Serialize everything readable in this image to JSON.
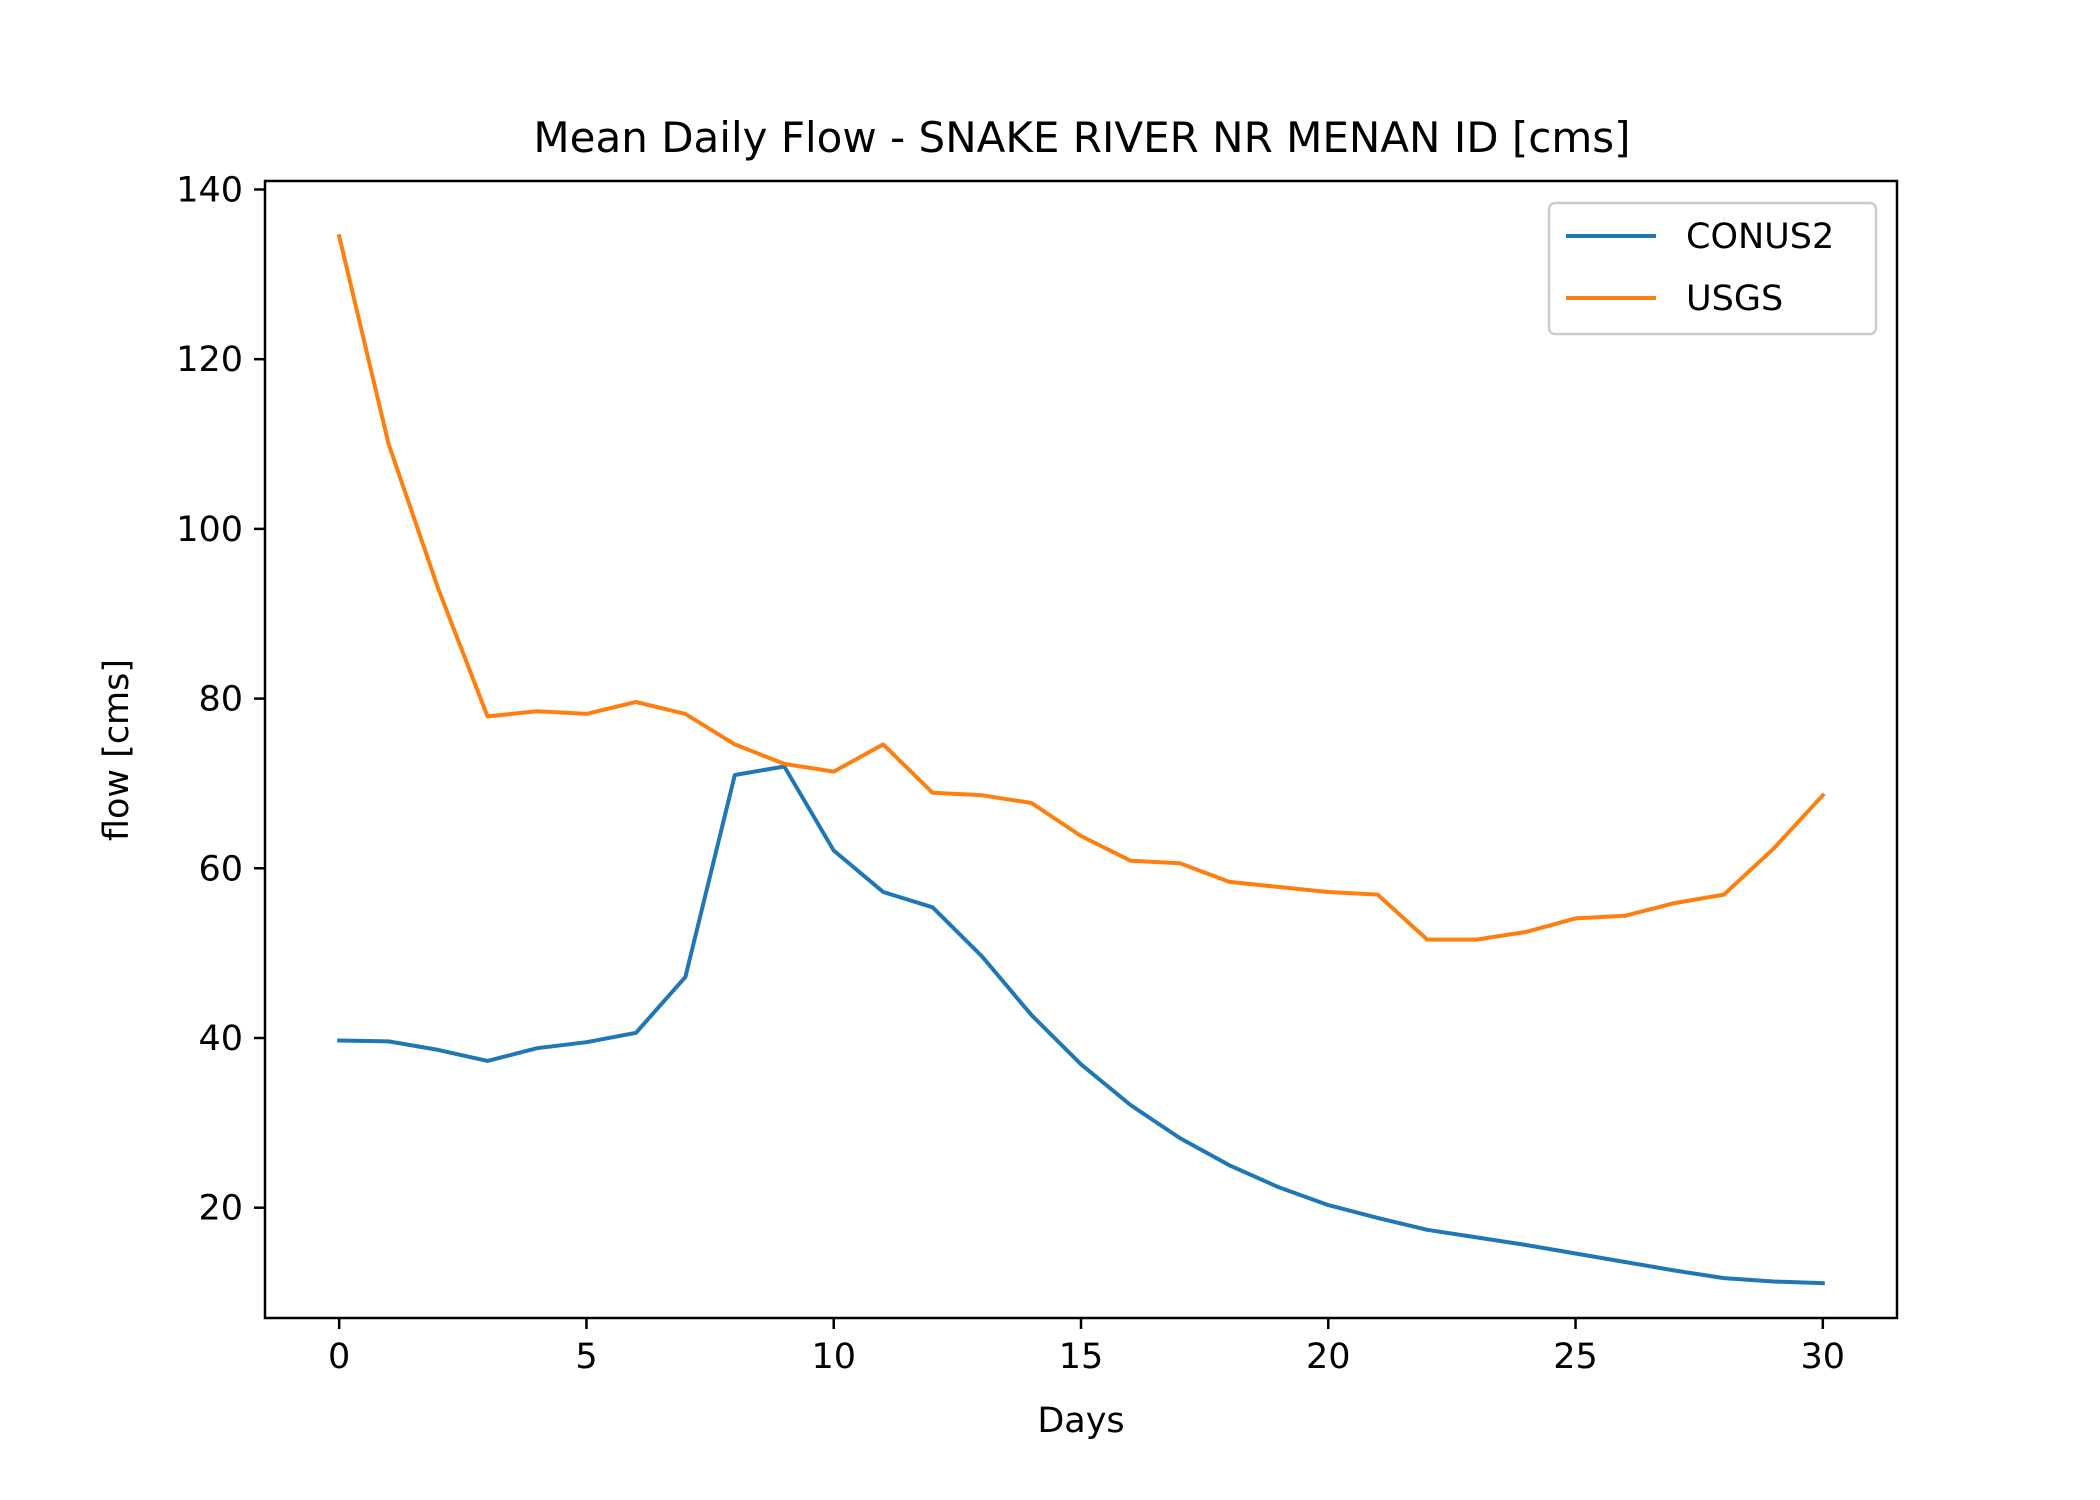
{
  "chart_data": {
    "type": "line",
    "title": "Mean Daily Flow - SNAKE RIVER NR MENAN ID [cms]",
    "xlabel": "Days",
    "ylabel": "flow [cms]",
    "xlim": [
      -1.5,
      31.5
    ],
    "ylim": [
      7,
      141
    ],
    "xticks": [
      0,
      5,
      10,
      15,
      20,
      25,
      30
    ],
    "yticks": [
      20,
      40,
      60,
      80,
      100,
      120,
      140
    ],
    "grid": false,
    "legend_position": "top-right",
    "x": [
      0,
      1,
      2,
      3,
      4,
      5,
      6,
      7,
      8,
      9,
      10,
      11,
      12,
      13,
      14,
      15,
      16,
      17,
      18,
      19,
      20,
      21,
      22,
      23,
      24,
      25,
      26,
      27,
      28,
      29,
      30
    ],
    "series": [
      {
        "name": "CONUS2",
        "color": "#1f77b4",
        "values": [
          39.7,
          39.6,
          38.6,
          37.3,
          38.8,
          39.5,
          40.6,
          47.2,
          71.0,
          72.0,
          62.1,
          57.2,
          55.4,
          49.6,
          42.7,
          36.9,
          32.1,
          28.2,
          25.0,
          22.4,
          20.3,
          18.8,
          17.4,
          16.5,
          15.6,
          14.6,
          13.6,
          12.6,
          11.7,
          11.3,
          11.1
        ]
      },
      {
        "name": "USGS",
        "color": "#ff7f0e",
        "values": [
          134.5,
          110.0,
          93.0,
          77.9,
          78.5,
          78.2,
          79.6,
          78.2,
          74.6,
          72.3,
          71.4,
          74.6,
          68.9,
          68.6,
          67.7,
          63.8,
          60.9,
          60.6,
          58.4,
          57.8,
          57.2,
          56.9,
          51.6,
          51.6,
          52.5,
          54.1,
          54.4,
          55.9,
          56.9,
          62.3,
          68.6
        ]
      }
    ]
  }
}
